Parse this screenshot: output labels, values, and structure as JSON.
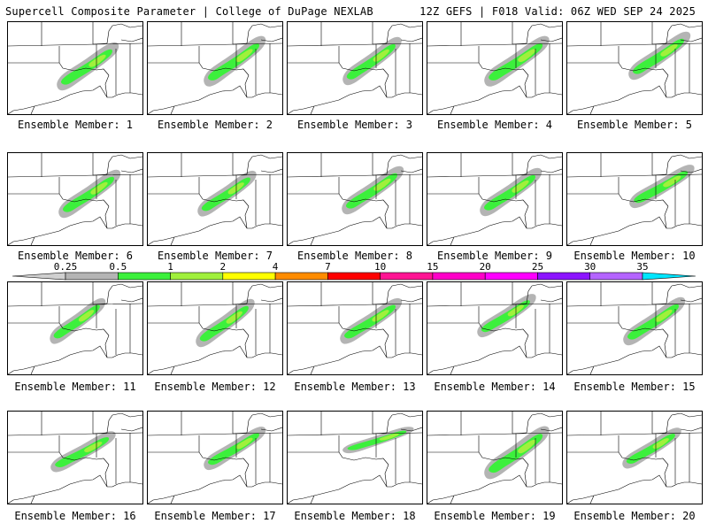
{
  "header": {
    "left_title": "Supercell Composite Parameter | College of DuPage NEXLAB",
    "right_title": "12Z GEFS | F018 Valid: 06Z WED SEP 24 2025"
  },
  "legend": {
    "bins": [
      {
        "label": "0.25",
        "color": "#d0d0d0"
      },
      {
        "label": "0.5",
        "color": "#b4b4b4"
      },
      {
        "label": "1",
        "color": "#3cf03c"
      },
      {
        "label": "2",
        "color": "#a0f03c"
      },
      {
        "label": "4",
        "color": "#ffff00"
      },
      {
        "label": "7",
        "color": "#ff8c00"
      },
      {
        "label": "10",
        "color": "#ff0000"
      },
      {
        "label": "15",
        "color": "#ff1493"
      },
      {
        "label": "20",
        "color": "#ff00c8"
      },
      {
        "label": "25",
        "color": "#ff00ff"
      },
      {
        "label": "30",
        "color": "#8c14ff"
      },
      {
        "label": "35",
        "color": "#b464ff"
      },
      {
        "label": "",
        "color": "#00e6ff"
      }
    ]
  },
  "members": [
    {
      "label": "Ensemble Member: 1"
    },
    {
      "label": "Ensemble Member: 2"
    },
    {
      "label": "Ensemble Member: 3"
    },
    {
      "label": "Ensemble Member: 4"
    },
    {
      "label": "Ensemble Member: 5"
    },
    {
      "label": "Ensemble Member: 6"
    },
    {
      "label": "Ensemble Member: 7"
    },
    {
      "label": "Ensemble Member: 8"
    },
    {
      "label": "Ensemble Member: 9"
    },
    {
      "label": "Ensemble Member: 10"
    },
    {
      "label": "Ensemble Member: 11"
    },
    {
      "label": "Ensemble Member: 12"
    },
    {
      "label": "Ensemble Member: 13"
    },
    {
      "label": "Ensemble Member: 14"
    },
    {
      "label": "Ensemble Member: 15"
    },
    {
      "label": "Ensemble Member: 16"
    },
    {
      "label": "Ensemble Member: 17"
    },
    {
      "label": "Ensemble Member: 18"
    },
    {
      "label": "Ensemble Member: 19"
    },
    {
      "label": "Ensemble Member: 20"
    }
  ]
}
